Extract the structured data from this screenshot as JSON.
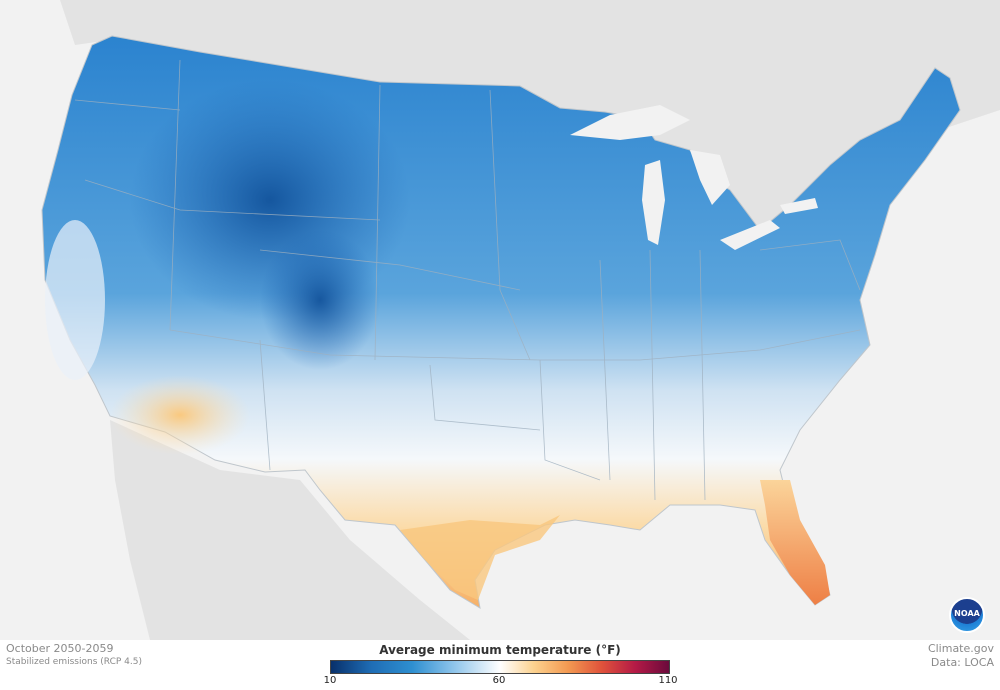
{
  "footer": {
    "period": "October 2050-2059",
    "scenario": "Stabilized emissions (RCP 4.5)",
    "credit_site": "Climate.gov",
    "credit_data": "Data: LOCA"
  },
  "legend": {
    "title": "Average minimum temperature (°F)",
    "min_label": "10",
    "mid_label": "60",
    "max_label": "110",
    "colors": [
      "#08306b",
      "#2e8fd0",
      "#ffffff",
      "#f39a52",
      "#b41a46",
      "#6b0a3c"
    ]
  },
  "logo": {
    "text": "NOAA"
  }
}
